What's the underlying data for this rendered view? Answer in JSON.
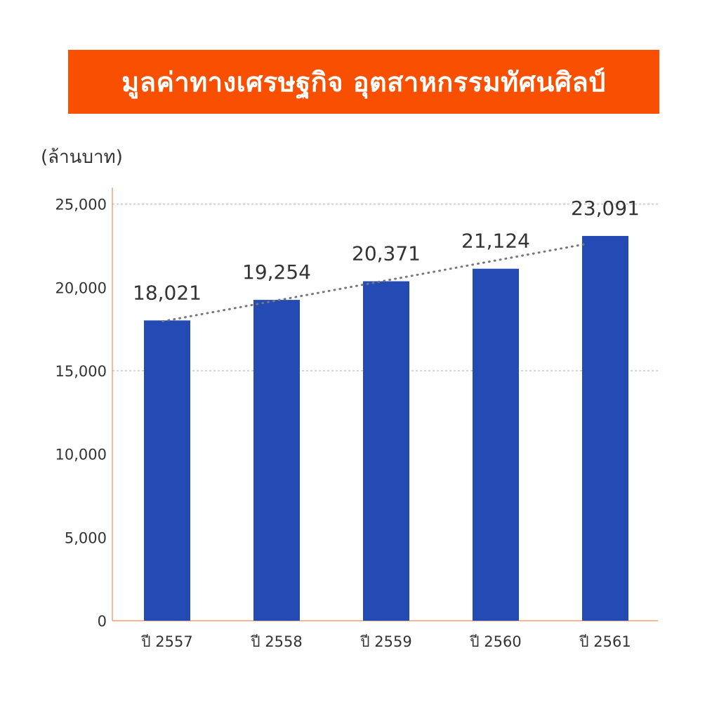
{
  "title": "มูลค่าทางเศรษฐกิจ อุตสาหกรรมทัศนศิลป์",
  "colors": {
    "banner": "#f84f00",
    "bar": "#234bb3",
    "axis": "#f0a070",
    "grid": "#aaaaaa",
    "trend": "#777777"
  },
  "chart_data": {
    "type": "bar",
    "ylabel": "(ล้านบาท)",
    "categories": [
      "ปี 2557",
      "ปี 2558",
      "ปี 2559",
      "ปี 2560",
      "ปี 2561"
    ],
    "values": [
      18021,
      19254,
      20371,
      21124,
      23091
    ],
    "value_labels": [
      "18,021",
      "19,254",
      "20,371",
      "21,124",
      "23,091"
    ],
    "ylim": [
      0,
      26000
    ],
    "yticks": [
      0,
      5000,
      10000,
      15000,
      20000,
      25000
    ],
    "ytick_labels": [
      "0",
      "5,000",
      "10,000",
      "15,000",
      "20,000",
      "25,000"
    ],
    "gridlines_at": [
      15000,
      25000
    ],
    "trendline": "linear, dotted",
    "legend": "none"
  }
}
